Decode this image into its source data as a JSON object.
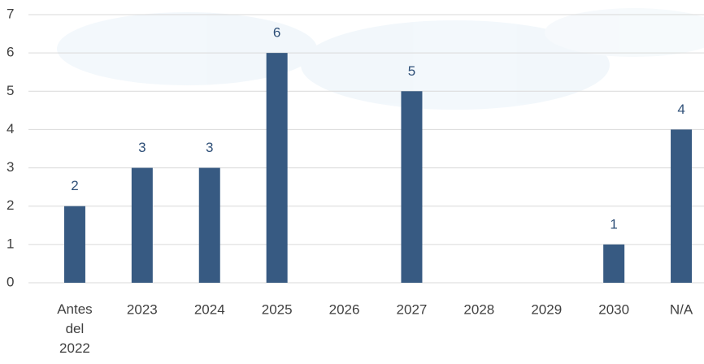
{
  "chart_data": {
    "type": "bar",
    "categories": [
      "Antes del 2022",
      "2023",
      "2024",
      "2025",
      "2026",
      "2027",
      "2028",
      "2029",
      "2030",
      "N/A"
    ],
    "values": [
      2,
      3,
      3,
      6,
      0,
      5,
      0,
      0,
      1,
      4
    ],
    "color": "#375a82",
    "ylim": [
      0,
      7
    ],
    "yticks": [
      0,
      1,
      2,
      3,
      4,
      5,
      6,
      7
    ],
    "grid": true
  }
}
